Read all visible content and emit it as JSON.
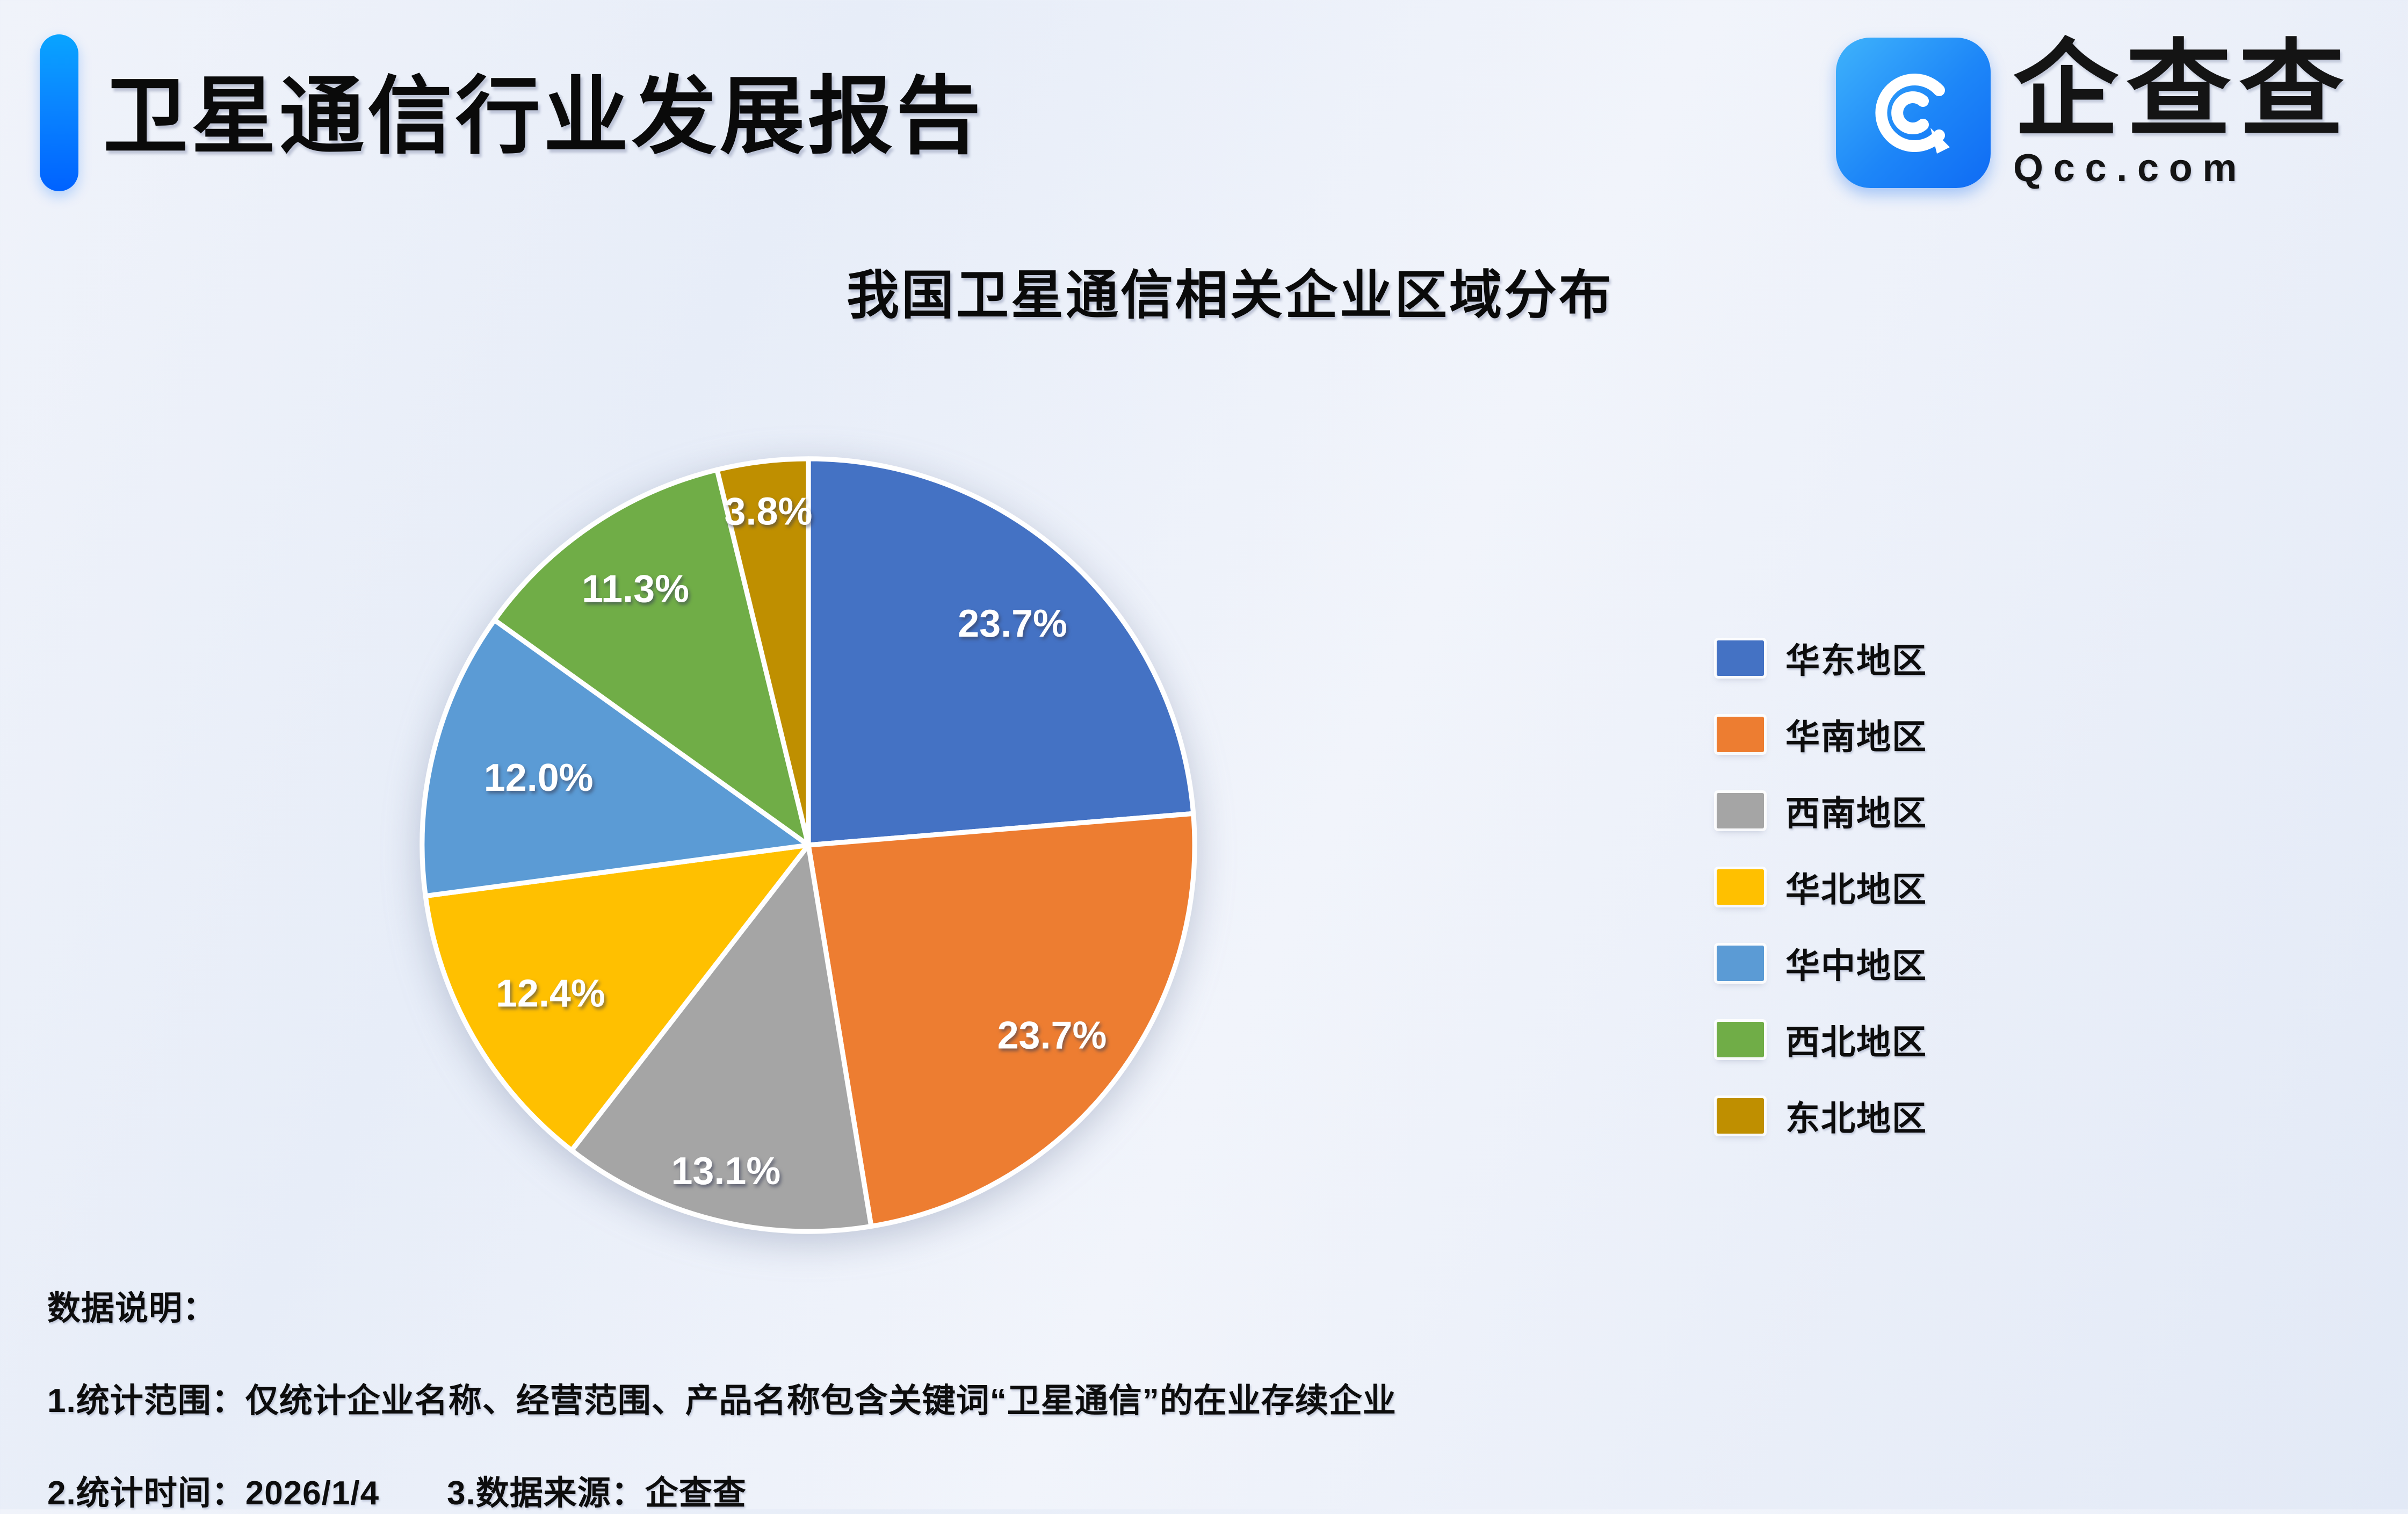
{
  "header": {
    "title": "卫星通信行业发展报告"
  },
  "logo": {
    "brand": "企查查",
    "domain": "Qcc.com"
  },
  "chart_data": {
    "type": "pie",
    "title": "我国卫星通信相关企业区域分布",
    "series": [
      {
        "name": "华东地区",
        "value": 23.7,
        "label": "23.7%",
        "color": "#4472C4",
        "label_radius": 0.78
      },
      {
        "name": "华南地区",
        "value": 23.7,
        "label": "23.7%",
        "color": "#ED7D31",
        "label_radius": 0.8
      },
      {
        "name": "西南地区",
        "value": 13.1,
        "label": "13.1%",
        "color": "#A5A5A5",
        "label_radius": 0.87
      },
      {
        "name": "华北地区",
        "value": 12.4,
        "label": "12.4%",
        "color": "#FFC000",
        "label_radius": 0.77
      },
      {
        "name": "华中地区",
        "value": 12.0,
        "label": "12.0%",
        "color": "#5B9BD5",
        "label_radius": 0.72
      },
      {
        "name": "西北地区",
        "value": 11.3,
        "label": "11.3%",
        "color": "#70AD47",
        "label_radius": 0.8
      },
      {
        "name": "东北地区",
        "value": 3.8,
        "label": "3.8%",
        "color": "#BF8F00",
        "label_radius": 0.87
      }
    ],
    "start_angle_deg": 0,
    "direction": "clockwise",
    "legend_position": "right",
    "slice_border_color": "#FFFFFF",
    "label_color": "#FFFFFF",
    "total": 100.0
  },
  "notes": {
    "heading": "数据说明：",
    "line1": "1.统计范围：仅统计企业名称、经营范围、产品名称包含关键词“卫星通信”的在业存续企业",
    "line2": "2.统计时间：2026/1/4　　3.数据来源：企查查"
  }
}
